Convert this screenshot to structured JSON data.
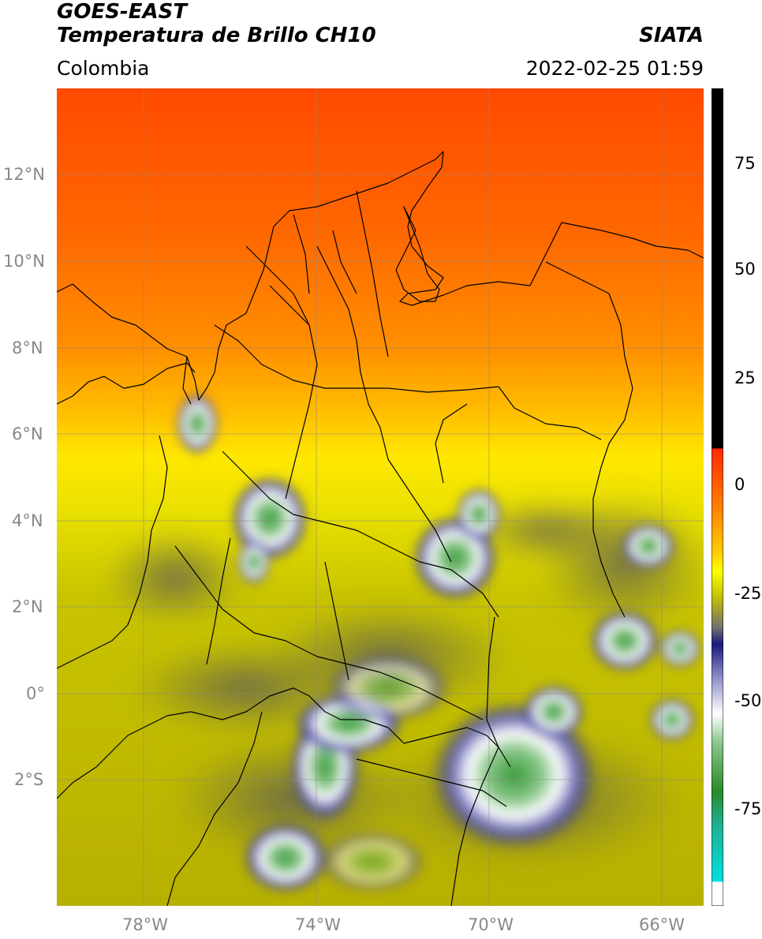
{
  "header": {
    "satellite": "GOES-EAST",
    "product": "Temperatura de Brillo CH10",
    "region": "Colombia",
    "agency": "SIATA",
    "timestamp": "2022-02-25 01:59"
  },
  "axes": {
    "lat_ticks": [
      "12°N",
      "10°N",
      "8°N",
      "6°N",
      "4°N",
      "2°N",
      "0°",
      "2°S"
    ],
    "lon_ticks": [
      "78°W",
      "74°W",
      "70°W",
      "66°W"
    ]
  },
  "colorbar": {
    "ticks": [
      "75",
      "50",
      "25",
      "0",
      "-25",
      "-50",
      "-75"
    ],
    "range": [
      -95,
      90
    ],
    "colors": {
      "missing": "#000000",
      "warm_red": "#ff2a00",
      "orange": "#ff8a00",
      "yellow": "#ffff00",
      "olive": "#a8a800",
      "gray": "#707070",
      "navy": "#1a1a80",
      "white": "#ffffff",
      "green": "#3a9a3a",
      "cyan": "#00e0e0"
    }
  }
}
